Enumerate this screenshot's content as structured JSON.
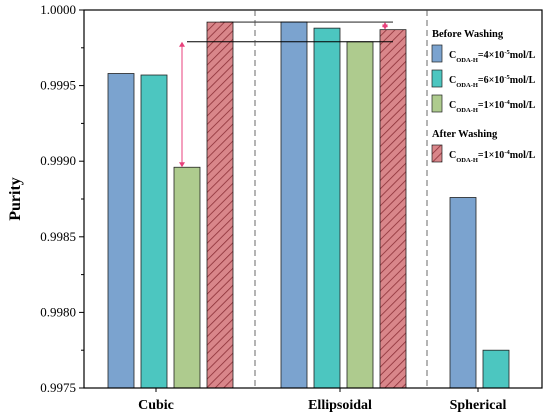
{
  "chart_data": {
    "type": "bar",
    "ylabel": "Purity",
    "ylim": [
      0.9975,
      1.0
    ],
    "yticks": [
      "0.9975",
      "0.9980",
      "0.9985",
      "0.9990",
      "0.9995",
      "1.0000"
    ],
    "categories": [
      "Cubic",
      "Ellipsoidal",
      "Spherical"
    ],
    "series": [
      {
        "name": "C_ODA-H=4×10^-5 mol/L",
        "group": "Before Washing",
        "color": "#7BA3CF",
        "hatch": false,
        "values": [
          0.99958,
          0.99992,
          0.99876
        ]
      },
      {
        "name": "C_ODA-H=6×10^-5 mol/L",
        "group": "Before Washing",
        "color": "#4CC6C0",
        "hatch": false,
        "values": [
          0.99957,
          0.99988,
          0.99775
        ]
      },
      {
        "name": "C_ODA-H=1×10^-4 mol/L",
        "group": "Before Washing",
        "color": "#AECB8E",
        "hatch": false,
        "values": [
          0.99896,
          0.99979,
          null
        ]
      },
      {
        "name": "C_ODA-H=1×10^-4 mol/L",
        "group": "After Washing",
        "color": "#D9868A",
        "hatch": true,
        "values": [
          0.99992,
          0.99987,
          null
        ]
      }
    ],
    "legend": {
      "position": "top-right",
      "groups": [
        {
          "title": "Before Washing",
          "entries": [
            {
              "base": "C",
              "sub": "ODA-H",
              "text1": "=4×10",
              "sup": "-5",
              "text2": "mol/L",
              "color": "#7BA3CF",
              "hatch": false
            },
            {
              "base": "C",
              "sub": "ODA-H",
              "text1": "=6×10",
              "sup": "-5",
              "text2": "mol/L",
              "color": "#4CC6C0",
              "hatch": false
            },
            {
              "base": "C",
              "sub": "ODA-H",
              "text1": "=1×10",
              "sup": "-4",
              "text2": "mol/L",
              "color": "#AECB8E",
              "hatch": false
            }
          ]
        },
        {
          "title": "After Washing",
          "entries": [
            {
              "base": "C",
              "sub": "ODA-H",
              "text1": "=1×10",
              "sup": "-4",
              "text2": "mol/L",
              "color": "#D9868A",
              "hatch": true
            }
          ]
        }
      ]
    },
    "reference_lines": [
      {
        "y": 0.99992,
        "from_category": 0,
        "to_category": 1
      },
      {
        "y": 0.99979,
        "from_category": 0,
        "to_category": 1
      }
    ],
    "arrows": [
      {
        "category": 0,
        "from": 0.99979,
        "to": 0.99896,
        "color": "#E8427C"
      },
      {
        "category": 1,
        "from": 0.99992,
        "to": 0.99987,
        "color": "#E8427C"
      }
    ],
    "grid": false
  }
}
